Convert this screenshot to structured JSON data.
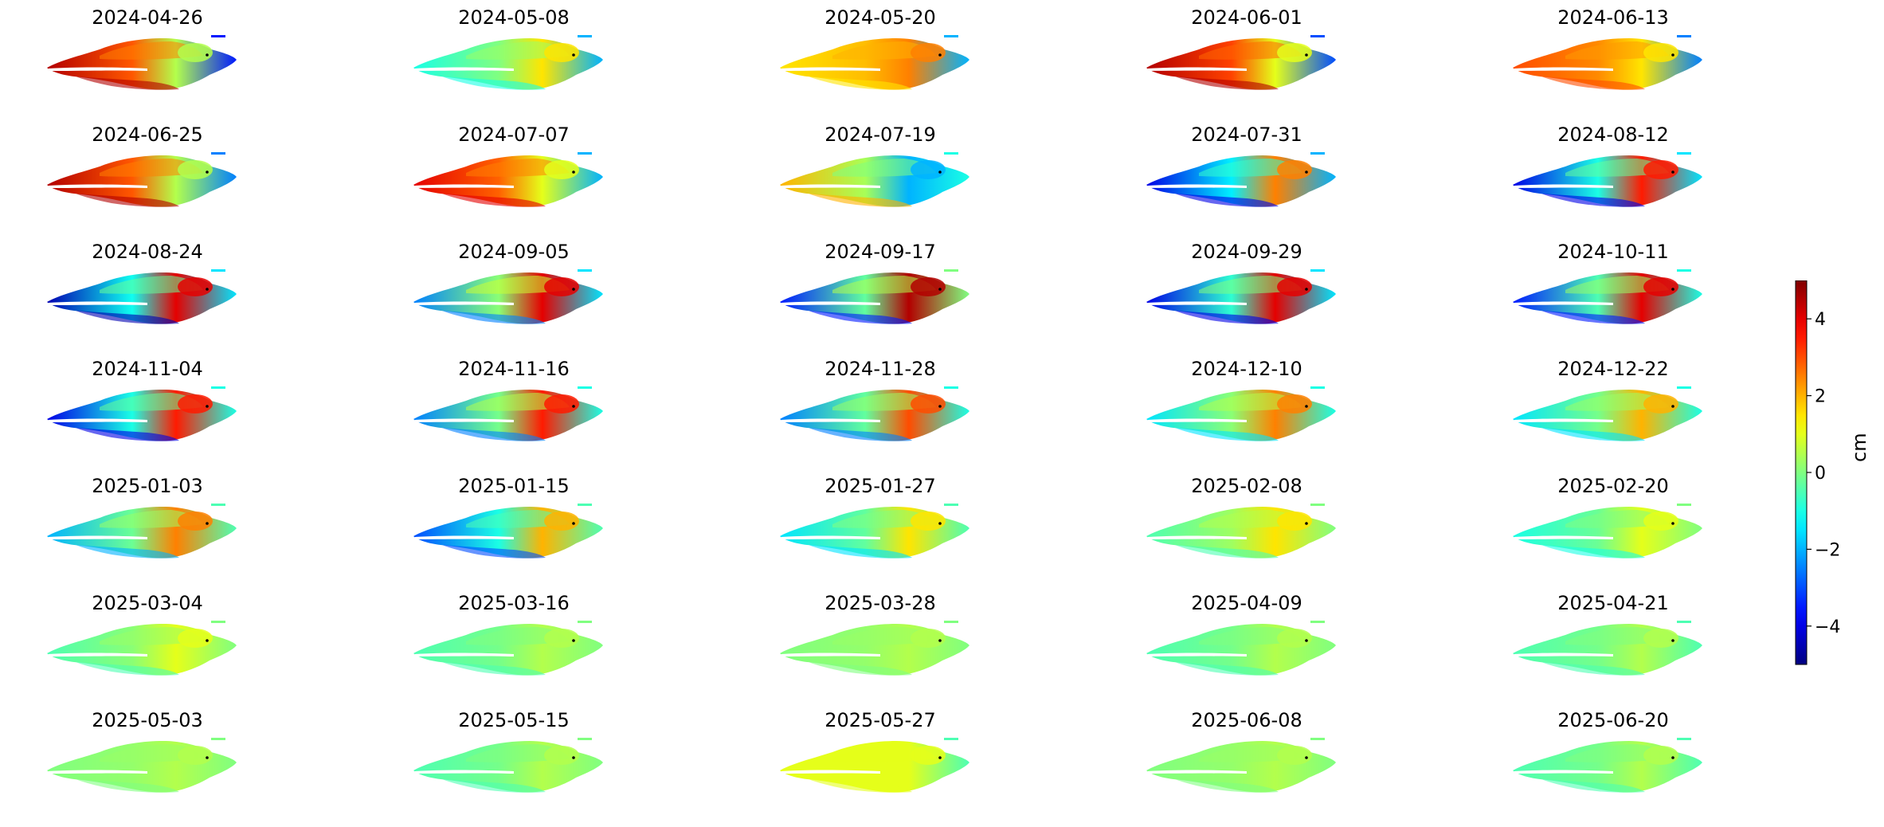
{
  "chart_data": {
    "type": "heatmap",
    "panels": [
      "2024-04-26",
      "2024-05-08",
      "2024-05-20",
      "2024-06-01",
      "2024-06-13",
      "2024-06-25",
      "2024-07-07",
      "2024-07-19",
      "2024-07-31",
      "2024-08-12",
      "2024-08-24",
      "2024-09-05",
      "2024-09-17",
      "2024-09-29",
      "2024-10-11",
      "2024-11-04",
      "2024-11-16",
      "2024-11-28",
      "2024-12-10",
      "2024-12-22",
      "2025-01-03",
      "2025-01-15",
      "2025-01-27",
      "2025-02-08",
      "2025-02-20",
      "2025-03-04",
      "2025-03-16",
      "2025-03-28",
      "2025-04-09",
      "2025-04-21",
      "2025-05-03",
      "2025-05-15",
      "2025-05-27",
      "2025-06-08",
      "2025-06-20"
    ],
    "panel_levels": [
      {
        "west": 4.5,
        "center": 0.5,
        "east": -3.5
      },
      {
        "west": -1.0,
        "center": 1.5,
        "east": -2.0
      },
      {
        "west": 1.5,
        "center": 2.5,
        "east": -2.0
      },
      {
        "west": 4.5,
        "center": 1.0,
        "east": -3.0
      },
      {
        "west": 3.0,
        "center": 1.5,
        "east": -2.5
      },
      {
        "west": 4.5,
        "center": 0.5,
        "east": -2.5
      },
      {
        "west": 4.0,
        "center": 1.0,
        "east": -2.0
      },
      {
        "west": 2.0,
        "center": -2.0,
        "east": -1.0
      },
      {
        "west": -4.0,
        "center": 2.5,
        "east": -2.0
      },
      {
        "west": -4.0,
        "center": 3.5,
        "east": -1.5
      },
      {
        "west": -4.5,
        "center": 4.0,
        "east": -1.5
      },
      {
        "west": -2.5,
        "center": 4.0,
        "east": -1.5
      },
      {
        "west": -3.5,
        "center": 4.5,
        "east": 0.0
      },
      {
        "west": -4.0,
        "center": 4.0,
        "east": -1.5
      },
      {
        "west": -3.5,
        "center": 4.0,
        "east": -1.0
      },
      {
        "west": -4.0,
        "center": 3.5,
        "east": -1.0
      },
      {
        "west": -2.5,
        "center": 3.5,
        "east": -1.0
      },
      {
        "west": -2.5,
        "center": 3.0,
        "east": -1.0
      },
      {
        "west": -1.5,
        "center": 2.5,
        "east": -1.0
      },
      {
        "west": -1.5,
        "center": 2.0,
        "east": -1.0
      },
      {
        "west": -2.0,
        "center": 2.5,
        "east": -0.5
      },
      {
        "west": -3.0,
        "center": 2.0,
        "east": -0.5
      },
      {
        "west": -1.5,
        "center": 1.5,
        "east": -0.5
      },
      {
        "west": -0.5,
        "center": 1.5,
        "east": 0.0
      },
      {
        "west": -1.0,
        "center": 1.0,
        "east": 0.0
      },
      {
        "west": -0.5,
        "center": 1.0,
        "east": 0.0
      },
      {
        "west": -0.5,
        "center": 0.5,
        "east": 0.0
      },
      {
        "west": 0.0,
        "center": 0.5,
        "east": 0.0
      },
      {
        "west": -0.5,
        "center": 0.5,
        "east": 0.0
      },
      {
        "west": -0.5,
        "center": 0.5,
        "east": -0.5
      },
      {
        "west": 0.0,
        "center": 0.5,
        "east": 0.0
      },
      {
        "west": -0.5,
        "center": 0.5,
        "east": 0.0
      },
      {
        "west": 1.0,
        "center": 1.0,
        "east": -0.5
      },
      {
        "west": 0.0,
        "center": 0.5,
        "east": 0.0
      },
      {
        "west": -0.5,
        "center": 0.5,
        "east": -0.5
      }
    ],
    "zlim": [
      -5,
      5
    ],
    "colormap": "jet",
    "colorbar": {
      "label": "cm",
      "ticks": [
        -4,
        -2,
        0,
        2,
        4
      ],
      "tick_labels": [
        "−4",
        "−2",
        "0",
        "2",
        "4"
      ]
    },
    "grid": false,
    "axes_visible": false
  }
}
